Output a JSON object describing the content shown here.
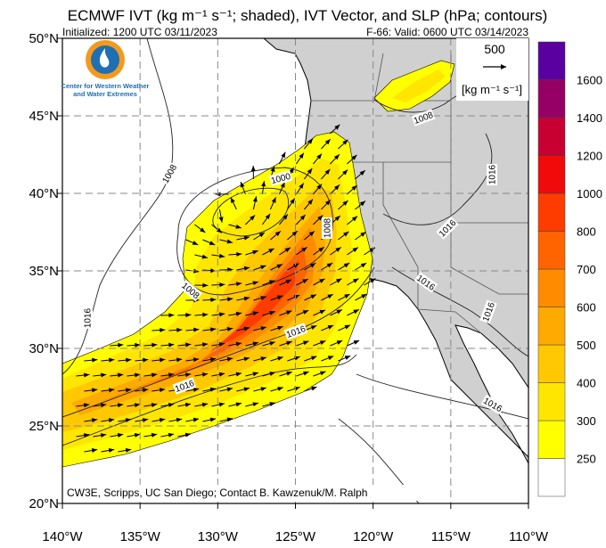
{
  "header": {
    "title": "ECMWF IVT (kg m⁻¹ s⁻¹; shaded), IVT Vector, and SLP (hPa; contours)",
    "initialized": "Initialized: 1200 UTC 03/11/2023",
    "valid": "F-66: Valid: 0600 UTC 03/14/2023"
  },
  "logo": {
    "lines": [
      "Center for Western Weather",
      "and Water Extremes"
    ]
  },
  "map": {
    "lon_ticks": [
      {
        "value": -140,
        "label": "140°W"
      },
      {
        "value": -135,
        "label": "135°W"
      },
      {
        "value": -130,
        "label": "130°W"
      },
      {
        "value": -125,
        "label": "125°W"
      },
      {
        "value": -120,
        "label": "120°W"
      },
      {
        "value": -115,
        "label": "115°W"
      },
      {
        "value": -110,
        "label": "110°W"
      }
    ],
    "lat_ticks": [
      {
        "value": 50,
        "label": "50°N"
      },
      {
        "value": 45,
        "label": "45°N"
      },
      {
        "value": 40,
        "label": "40°N"
      },
      {
        "value": 35,
        "label": "35°N"
      },
      {
        "value": 30,
        "label": "30°N"
      },
      {
        "value": 25,
        "label": "25°N"
      },
      {
        "value": 20,
        "label": "20°N"
      }
    ],
    "contour_labels": [
      "1008",
      "1000",
      "1008",
      "1008",
      "1016",
      "1016",
      "1016",
      "1008",
      "1016",
      "1016",
      "1016",
      "1016",
      "1016"
    ],
    "vector_reference": {
      "value": 500,
      "units": "[kg m⁻¹ s⁻¹]"
    }
  },
  "colorbar": {
    "levels": [
      250,
      300,
      400,
      500,
      600,
      700,
      800,
      1000,
      1200,
      1400,
      1600
    ],
    "colors": [
      "#ffffff",
      "#ffff00",
      "#ffe600",
      "#ffc800",
      "#ffaa00",
      "#ff8c00",
      "#ff6400",
      "#ff3c00",
      "#f00a0a",
      "#c80032",
      "#960064",
      "#5a00a0"
    ]
  },
  "credit": "CW3E, Scripps, UC San Diego; Contact B. Kawzenuk/M. Ralph"
}
